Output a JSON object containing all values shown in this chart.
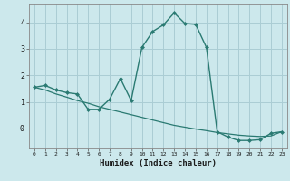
{
  "xlabel": "Humidex (Indice chaleur)",
  "ylabel": "",
  "bg_color": "#cce8ec",
  "grid_color": "#aacdd4",
  "line_color": "#2a7a72",
  "xlim": [
    -0.5,
    23.5
  ],
  "ylim": [
    -0.75,
    4.7
  ],
  "x_data": [
    0,
    1,
    2,
    3,
    4,
    5,
    6,
    7,
    8,
    9,
    10,
    11,
    12,
    13,
    14,
    15,
    16,
    17,
    18,
    19,
    20,
    21,
    22,
    23
  ],
  "y_data": [
    1.55,
    1.62,
    1.45,
    1.35,
    1.3,
    0.72,
    0.72,
    1.1,
    1.88,
    1.05,
    3.05,
    3.65,
    3.9,
    4.35,
    3.95,
    3.92,
    3.05,
    -0.12,
    -0.32,
    -0.45,
    -0.45,
    -0.42,
    -0.18,
    -0.12
  ],
  "y_trend": [
    1.55,
    1.45,
    1.3,
    1.18,
    1.05,
    0.95,
    0.82,
    0.72,
    0.62,
    0.52,
    0.42,
    0.32,
    0.22,
    0.12,
    0.05,
    -0.02,
    -0.08,
    -0.15,
    -0.2,
    -0.25,
    -0.28,
    -0.3,
    -0.28,
    -0.12
  ]
}
